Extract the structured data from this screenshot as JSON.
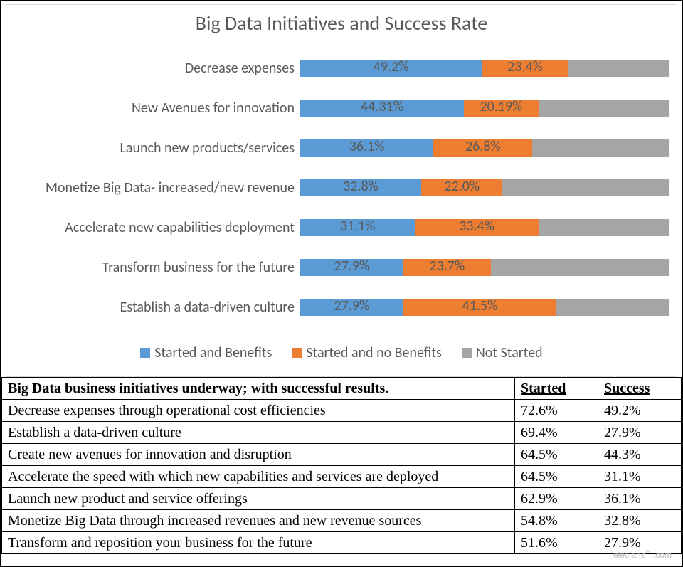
{
  "chart": {
    "title": "Big Data Initiatives and Success Rate",
    "title_fontsize": 28,
    "title_color": "#4b4b4b",
    "background_color": "#ffffff",
    "plot_border_color": "#d9d9d9",
    "label_fontsize": 20,
    "label_color": "#595959",
    "xlim": [
      0,
      100
    ],
    "type": "stacked-horizontal-bar",
    "segment_keys": [
      "started_benefits",
      "started_no_benefits",
      "not_started"
    ],
    "segment_colors": {
      "started_benefits": "#5b9bd5",
      "started_no_benefits": "#ed7d31",
      "not_started": "#a5a5a5"
    },
    "show_label_for": [
      "started_benefits",
      "started_no_benefits"
    ],
    "legend": [
      {
        "key": "started_benefits",
        "label": "Started and Benefits",
        "color": "#5b9bd5"
      },
      {
        "key": "started_no_benefits",
        "label": "Started and no Benefits",
        "color": "#ed7d31"
      },
      {
        "key": "not_started",
        "label": "Not Started",
        "color": "#a5a5a5"
      }
    ],
    "rows": [
      {
        "label": "Decrease expenses",
        "started_benefits": 49.2,
        "started_no_benefits": 23.4,
        "not_started": 27.4,
        "labels": {
          "started_benefits": "49.2%",
          "started_no_benefits": "23.4%"
        }
      },
      {
        "label": "New Avenues for innovation",
        "started_benefits": 44.31,
        "started_no_benefits": 20.19,
        "not_started": 35.5,
        "labels": {
          "started_benefits": "44.31%",
          "started_no_benefits": "20.19%"
        }
      },
      {
        "label": "Launch new products/services",
        "started_benefits": 36.1,
        "started_no_benefits": 26.8,
        "not_started": 37.1,
        "labels": {
          "started_benefits": "36.1%",
          "started_no_benefits": "26.8%"
        }
      },
      {
        "label": "Monetize Big Data- increased/new revenue",
        "started_benefits": 32.8,
        "started_no_benefits": 22.0,
        "not_started": 45.2,
        "labels": {
          "started_benefits": "32.8%",
          "started_no_benefits": "22.0%"
        }
      },
      {
        "label": "Accelerate new capabilities deployment",
        "started_benefits": 31.1,
        "started_no_benefits": 33.4,
        "not_started": 35.5,
        "labels": {
          "started_benefits": "31.1%",
          "started_no_benefits": "33.4%"
        }
      },
      {
        "label": "Transform business for the future",
        "started_benefits": 27.9,
        "started_no_benefits": 23.7,
        "not_started": 48.4,
        "labels": {
          "started_benefits": "27.9%",
          "started_no_benefits": "23.7%"
        }
      },
      {
        "label": "Establish a data-driven culture",
        "started_benefits": 27.9,
        "started_no_benefits": 41.5,
        "not_started": 30.6,
        "labels": {
          "started_benefits": "27.9%",
          "started_no_benefits": "41.5%"
        }
      }
    ]
  },
  "table": {
    "header": {
      "title": "Big Data business initiatives underway; with successful results.",
      "started": "Started",
      "success": "Success"
    },
    "font_family": "Georgia, 'Times New Roman', serif",
    "fontsize": 20,
    "border_color": "#000000",
    "rows": [
      {
        "label": "Decrease expenses through operational cost efficiencies",
        "started": "72.6%",
        "success": "49.2%"
      },
      {
        "label": "Establish a data-driven culture",
        "started": "69.4%",
        "success": "27.9%"
      },
      {
        "label": "Create new avenues for innovation and disruption",
        "started": "64.5%",
        "success": "44.3%"
      },
      {
        "label": "Accelerate the speed with which new capabilities and services are deployed",
        "started": "64.5%",
        "success": "31.1%"
      },
      {
        "label": "Launch new product and service offerings",
        "started": "62.9%",
        "success": "36.1%"
      },
      {
        "label": "Monetize Big Data through increased revenues and new revenue sources",
        "started": "54.8%",
        "success": "32.8%"
      },
      {
        "label": "Transform and reposition your business for the future",
        "started": "51.6%",
        "success": "27.9%"
      }
    ]
  },
  "watermark": {
    "text": "elecfans",
    "tm": "™",
    "sub": ".com"
  }
}
